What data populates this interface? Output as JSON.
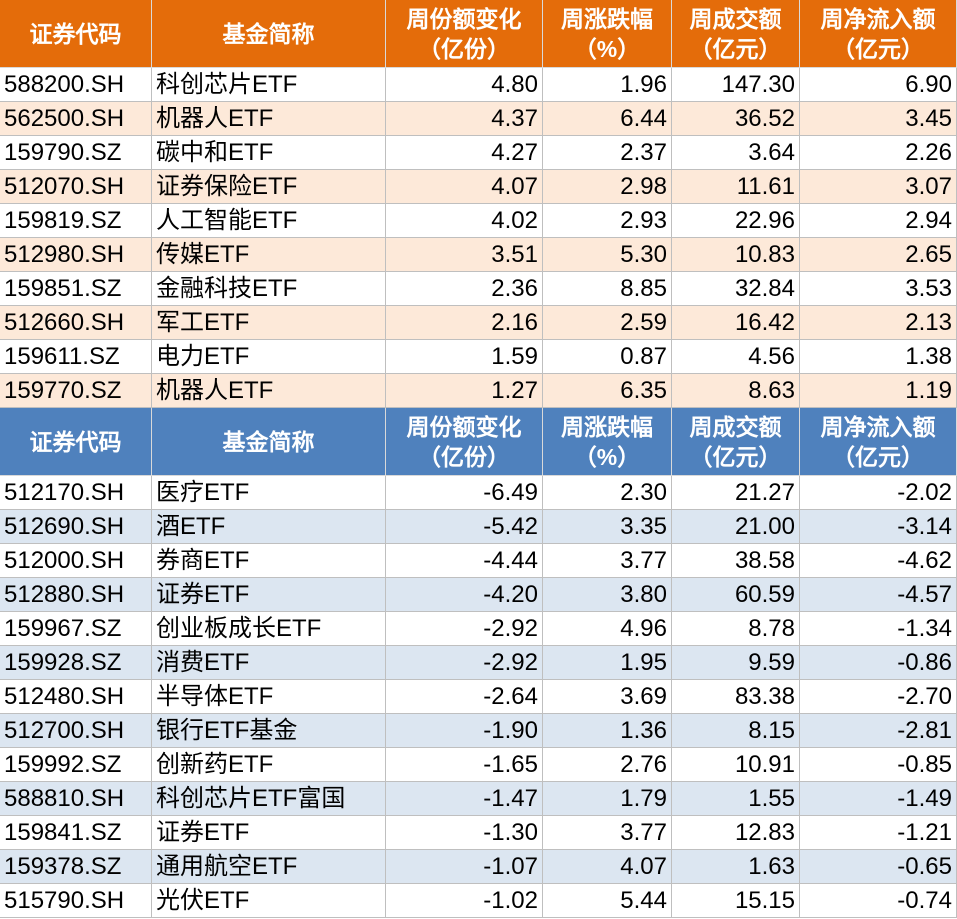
{
  "tables": [
    {
      "header": [
        [
          "证券代码"
        ],
        [
          "基金简称"
        ],
        [
          "周份额变化",
          "（亿份）"
        ],
        [
          "周涨跌幅",
          "（%）"
        ],
        [
          "周成交额",
          "（亿元）"
        ],
        [
          "周净流入额",
          "（亿元）"
        ]
      ],
      "rows": [
        [
          "588200.SH",
          "科创芯片ETF",
          "4.80",
          "1.96",
          "147.30",
          "6.90"
        ],
        [
          "562500.SH",
          "机器人ETF",
          "4.37",
          "6.44",
          "36.52",
          "3.45"
        ],
        [
          "159790.SZ",
          "碳中和ETF",
          "4.27",
          "2.37",
          "3.64",
          "2.26"
        ],
        [
          "512070.SH",
          "证券保险ETF",
          "4.07",
          "2.98",
          "11.61",
          "3.07"
        ],
        [
          "159819.SZ",
          "人工智能ETF",
          "4.02",
          "2.93",
          "22.96",
          "2.94"
        ],
        [
          "512980.SH",
          "传媒ETF",
          "3.51",
          "5.30",
          "10.83",
          "2.65"
        ],
        [
          "159851.SZ",
          "金融科技ETF",
          "2.36",
          "8.85",
          "32.84",
          "3.53"
        ],
        [
          "512660.SH",
          "军工ETF",
          "2.16",
          "2.59",
          "16.42",
          "2.13"
        ],
        [
          "159611.SZ",
          "电力ETF",
          "1.59",
          "0.87",
          "4.56",
          "1.38"
        ],
        [
          "159770.SZ",
          "机器人ETF",
          "1.27",
          "6.35",
          "8.63",
          "1.19"
        ]
      ]
    },
    {
      "header": [
        [
          "证券代码"
        ],
        [
          "基金简称"
        ],
        [
          "周份额变化",
          "（亿份）"
        ],
        [
          "周涨跌幅",
          "（%）"
        ],
        [
          "周成交额",
          "（亿元）"
        ],
        [
          "周净流入额",
          "（亿元）"
        ]
      ],
      "rows": [
        [
          "512170.SH",
          "医疗ETF",
          "-6.49",
          "2.30",
          "21.27",
          "-2.02"
        ],
        [
          "512690.SH",
          "酒ETF",
          "-5.42",
          "3.35",
          "21.00",
          "-3.14"
        ],
        [
          "512000.SH",
          "券商ETF",
          "-4.44",
          "3.77",
          "38.58",
          "-4.62"
        ],
        [
          "512880.SH",
          "证券ETF",
          "-4.20",
          "3.80",
          "60.59",
          "-4.57"
        ],
        [
          "159967.SZ",
          "创业板成长ETF",
          "-2.92",
          "4.96",
          "8.78",
          "-1.34"
        ],
        [
          "159928.SZ",
          "消费ETF",
          "-2.92",
          "1.95",
          "9.59",
          "-0.86"
        ],
        [
          "512480.SH",
          "半导体ETF",
          "-2.64",
          "3.69",
          "83.38",
          "-2.70"
        ],
        [
          "512700.SH",
          "银行ETF基金",
          "-1.90",
          "1.36",
          "8.15",
          "-2.81"
        ],
        [
          "159992.SZ",
          "创新药ETF",
          "-1.65",
          "2.76",
          "10.91",
          "-0.85"
        ],
        [
          "588810.SH",
          "科创芯片ETF富国",
          "-1.47",
          "1.79",
          "1.55",
          "-1.49"
        ],
        [
          "159841.SZ",
          "证券ETF",
          "-1.30",
          "3.77",
          "12.83",
          "-1.21"
        ],
        [
          "159378.SZ",
          "通用航空ETF",
          "-1.07",
          "4.07",
          "1.63",
          "-0.65"
        ],
        [
          "515790.SH",
          "光伏ETF",
          "-1.02",
          "5.44",
          "15.15",
          "-0.74"
        ]
      ]
    }
  ]
}
